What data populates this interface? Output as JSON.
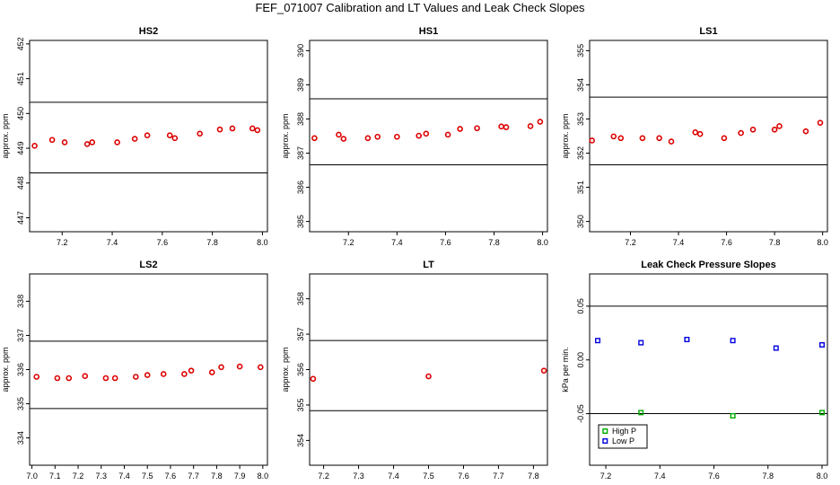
{
  "page": {
    "title": "FEF_071007  Calibration and LT Values and Leak Check Slopes"
  },
  "chart_data": [
    {
      "type": "scatter",
      "title": "HS2",
      "ylabel": "approx. ppm",
      "xlim": [
        7.07,
        8.02
      ],
      "ylim": [
        446.6,
        452.1
      ],
      "xticks": [
        "7.2",
        "7.4",
        "7.6",
        "7.8",
        "8.0"
      ],
      "yticks": [
        "447",
        "448",
        "449",
        "450",
        "451",
        "452"
      ],
      "hlines": [
        450.32,
        448.29
      ],
      "marker_color": "#dd0000",
      "x": [
        7.09,
        7.16,
        7.21,
        7.3,
        7.32,
        7.42,
        7.49,
        7.54,
        7.63,
        7.65,
        7.75,
        7.83,
        7.88,
        7.96,
        7.98
      ],
      "y": [
        449.07,
        449.24,
        449.17,
        449.12,
        449.17,
        449.17,
        449.27,
        449.37,
        449.37,
        449.29,
        449.42,
        449.54,
        449.57,
        449.57,
        449.52
      ]
    },
    {
      "type": "scatter",
      "title": "HS1",
      "ylabel": "approx. ppm",
      "xlim": [
        7.04,
        8.02
      ],
      "ylim": [
        384.7,
        390.3
      ],
      "xticks": [
        "7.2",
        "7.4",
        "7.6",
        "7.8",
        "8.0"
      ],
      "yticks": [
        "385",
        "386",
        "387",
        "388",
        "389",
        "390"
      ],
      "hlines": [
        388.59,
        386.66
      ],
      "marker_color": "#dd0000",
      "x": [
        7.06,
        7.16,
        7.18,
        7.28,
        7.32,
        7.4,
        7.49,
        7.52,
        7.61,
        7.66,
        7.73,
        7.83,
        7.85,
        7.95,
        7.99
      ],
      "y": [
        387.44,
        387.54,
        387.42,
        387.44,
        387.48,
        387.48,
        387.51,
        387.57,
        387.54,
        387.71,
        387.73,
        387.78,
        387.76,
        387.79,
        387.92
      ]
    },
    {
      "type": "scatter",
      "title": "LS1",
      "ylabel": "approx. ppm",
      "xlim": [
        7.03,
        8.02
      ],
      "ylim": [
        349.7,
        355.3
      ],
      "xticks": [
        "7.2",
        "7.4",
        "7.6",
        "7.8",
        "8.0"
      ],
      "yticks": [
        "350",
        "351",
        "352",
        "353",
        "354",
        "355"
      ],
      "hlines": [
        353.64,
        351.66
      ],
      "marker_color": "#dd0000",
      "x": [
        7.04,
        7.13,
        7.16,
        7.25,
        7.32,
        7.37,
        7.47,
        7.49,
        7.59,
        7.66,
        7.71,
        7.8,
        7.82,
        7.93,
        7.99
      ],
      "y": [
        352.37,
        352.49,
        352.44,
        352.44,
        352.44,
        352.34,
        352.61,
        352.56,
        352.44,
        352.59,
        352.69,
        352.69,
        352.79,
        352.64,
        352.89
      ]
    },
    {
      "type": "scatter",
      "title": "LS2",
      "ylabel": "approx. ppm",
      "xlim": [
        6.99,
        8.02
      ],
      "ylim": [
        333.2,
        338.8
      ],
      "xticks": [
        "7.0",
        "7.1",
        "7.2",
        "7.3",
        "7.4",
        "7.5",
        "7.6",
        "7.7",
        "7.8",
        "7.9",
        "8.0"
      ],
      "yticks": [
        "334",
        "335",
        "336",
        "337",
        "338"
      ],
      "hlines": [
        336.83,
        334.86
      ],
      "marker_color": "#dd0000",
      "x": [
        7.02,
        7.11,
        7.16,
        7.23,
        7.32,
        7.36,
        7.45,
        7.5,
        7.57,
        7.66,
        7.69,
        7.78,
        7.82,
        7.9,
        7.99
      ],
      "y": [
        335.79,
        335.75,
        335.75,
        335.81,
        335.75,
        335.75,
        335.79,
        335.84,
        335.87,
        335.87,
        335.97,
        335.92,
        336.07,
        336.09,
        336.07
      ]
    },
    {
      "type": "scatter",
      "title": "LT",
      "ylabel": "approx. ppm",
      "xlim": [
        7.16,
        7.84
      ],
      "ylim": [
        353.3,
        358.7
      ],
      "xticks": [
        "7.2",
        "7.3",
        "7.4",
        "7.5",
        "7.6",
        "7.7",
        "7.8"
      ],
      "yticks": [
        "354",
        "355",
        "356",
        "357",
        "358"
      ],
      "hlines": [
        356.82,
        354.84
      ],
      "marker_color": "#dd0000",
      "x": [
        7.17,
        7.5,
        7.83
      ],
      "y": [
        355.74,
        355.81,
        355.97
      ]
    },
    {
      "type": "scatter",
      "title": "Leak Check Pressure Slopes",
      "ylabel": "kPa per min.",
      "xlim": [
        7.14,
        8.02
      ],
      "ylim": [
        -0.098,
        0.08
      ],
      "xticks": [
        "7.2",
        "7.4",
        "7.6",
        "7.8",
        "8.0"
      ],
      "yticks": [
        "-0.05",
        "0.00",
        "0.05"
      ],
      "hlines": [
        0.05,
        -0.05
      ],
      "legend": {
        "placement": "bottom-left",
        "entries": [
          {
            "label": "High P",
            "color": "#00aa00"
          },
          {
            "label": "Low P",
            "color": "#0000dd"
          }
        ]
      },
      "series": [
        {
          "name": "High P",
          "color": "#00aa00",
          "x": [
            7.33,
            7.67,
            8.0
          ],
          "y": [
            -0.049,
            -0.052,
            -0.049
          ]
        },
        {
          "name": "Low P",
          "color": "#0000dd",
          "x": [
            7.17,
            7.33,
            7.5,
            7.67,
            7.83,
            8.0
          ],
          "y": [
            0.018,
            0.016,
            0.019,
            0.018,
            0.011,
            0.014
          ]
        }
      ]
    }
  ]
}
